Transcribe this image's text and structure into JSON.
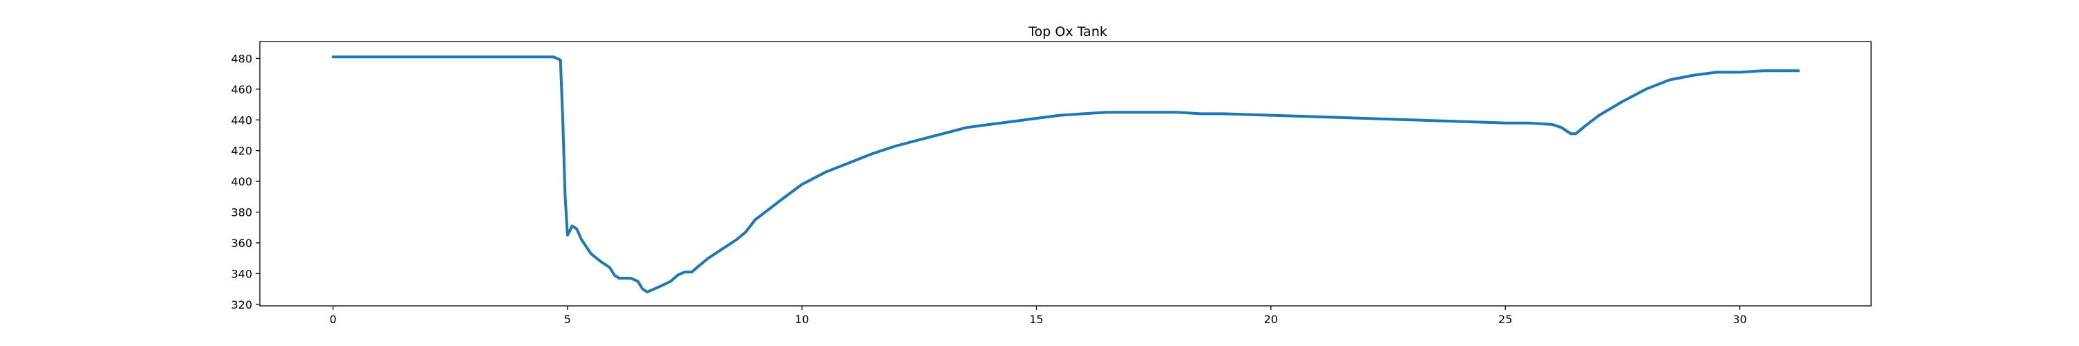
{
  "chart_data": {
    "type": "line",
    "title": "Top Ox Tank",
    "xlabel": "",
    "ylabel": "",
    "xlim": [
      -1.56,
      32.8
    ],
    "ylim": [
      319,
      491
    ],
    "xticks": [
      0,
      5,
      10,
      15,
      20,
      25,
      30
    ],
    "yticks": [
      320,
      340,
      360,
      380,
      400,
      420,
      440,
      460,
      480
    ],
    "grid": false,
    "legend": "none",
    "color": "#1f77b4",
    "series": [
      {
        "x": [
          0,
          1,
          2,
          3,
          4,
          4.7,
          4.85,
          4.9,
          4.95,
          5.0,
          5.05,
          5.1,
          5.2,
          5.3,
          5.5,
          5.7,
          5.9,
          6.0,
          6.1,
          6.2,
          6.35,
          6.5,
          6.6,
          6.7,
          6.85,
          7.0,
          7.2,
          7.35,
          7.5,
          7.65,
          7.8,
          8.0,
          8.3,
          8.6,
          8.8,
          9.0,
          9.3,
          9.6,
          10.0,
          10.5,
          11.0,
          11.5,
          12.0,
          12.5,
          13.0,
          13.5,
          14.0,
          14.5,
          15.0,
          15.5,
          16.0,
          16.5,
          17.0,
          17.5,
          18.0,
          18.5,
          19.0,
          20.0,
          21.0,
          22.0,
          23.0,
          24.0,
          25.0,
          25.5,
          26.0,
          26.2,
          26.4,
          26.5,
          26.7,
          27.0,
          27.5,
          28.0,
          28.5,
          29.0,
          29.5,
          30.0,
          30.5,
          31.0,
          31.25
        ],
        "y": [
          481,
          481,
          481,
          481,
          481,
          481,
          479,
          440,
          390,
          365,
          368,
          371,
          369,
          362,
          353,
          348,
          344,
          339,
          337,
          337,
          337,
          335,
          330,
          328,
          330,
          332,
          335,
          339,
          341,
          341,
          345,
          350,
          356,
          362,
          367,
          375,
          382,
          389,
          398,
          406,
          412,
          418,
          423,
          427,
          431,
          435,
          437,
          439,
          441,
          443,
          444,
          445,
          445,
          445,
          445,
          444,
          444,
          443,
          442,
          441,
          440,
          439,
          438,
          438,
          437,
          435,
          431,
          431,
          436,
          443,
          452,
          460,
          466,
          469,
          471,
          471,
          472,
          472,
          472
        ]
      }
    ]
  }
}
